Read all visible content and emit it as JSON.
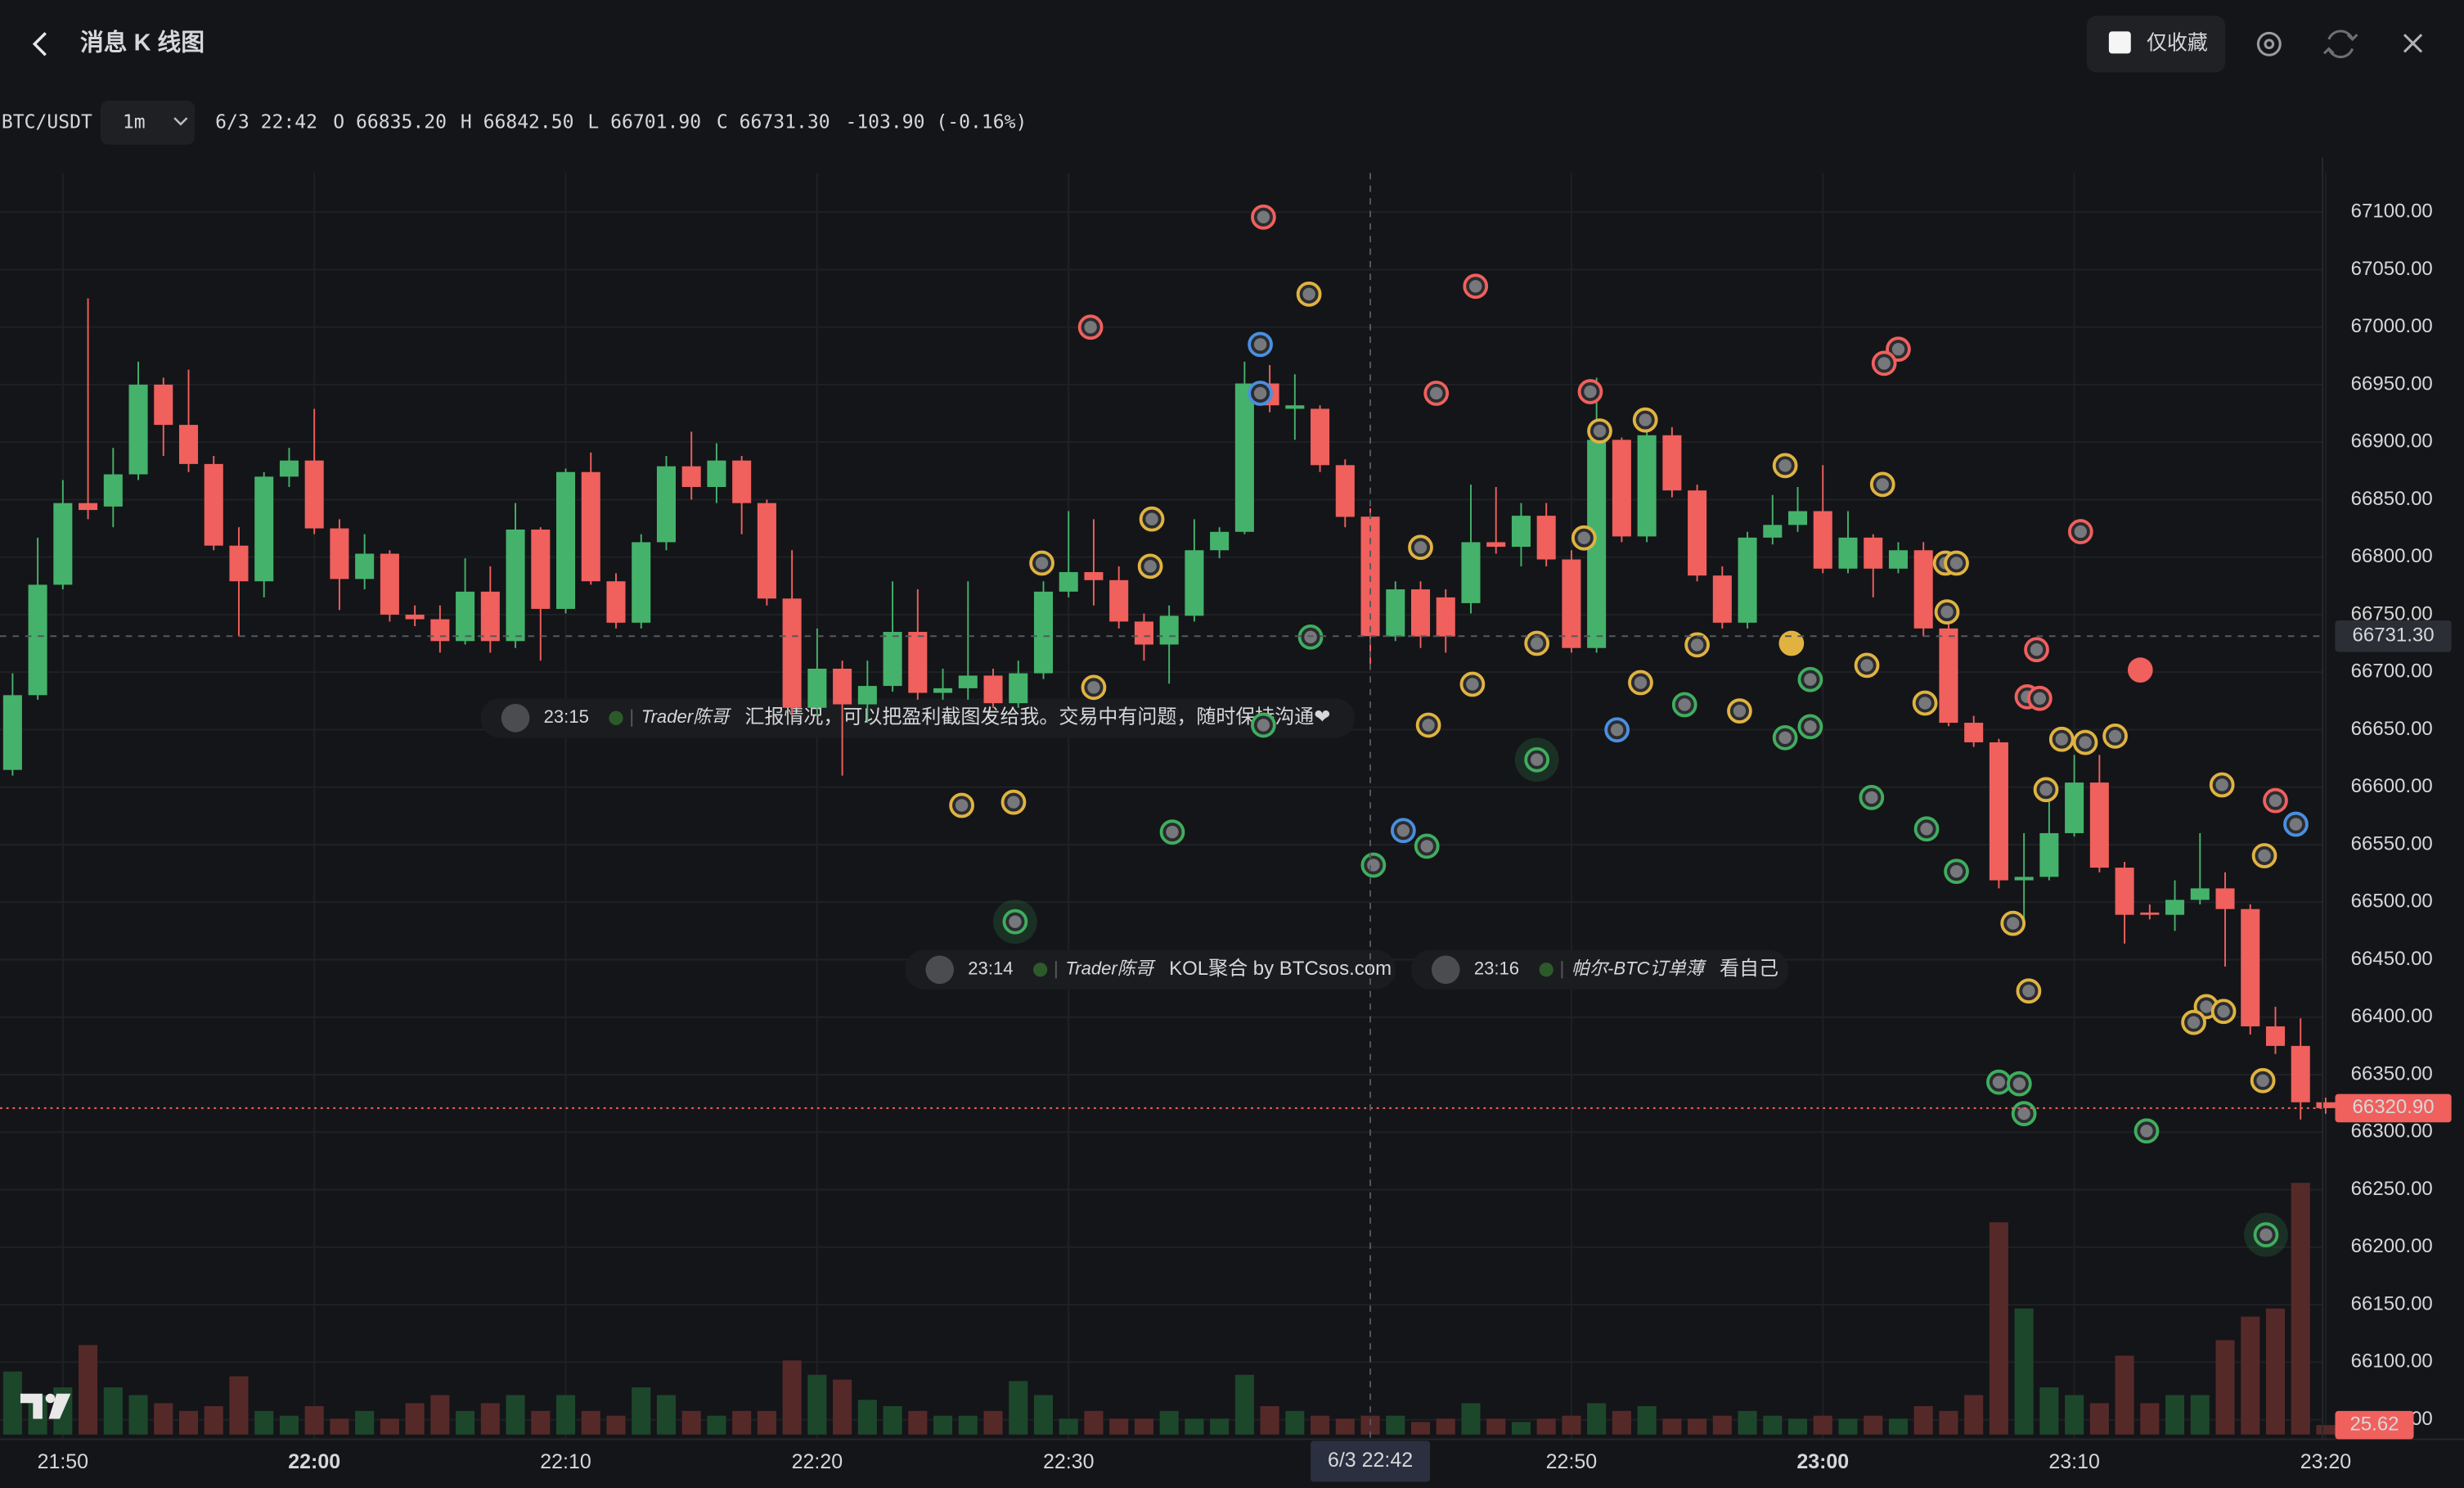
{
  "header": {
    "title": "消息 K 线图",
    "favorites_only": "仅收藏"
  },
  "info": {
    "symbol": "BTC/USDT",
    "interval": "1m",
    "time": "6/3 22:42",
    "open": "O 66835.20",
    "high": "H 66842.50",
    "low": "L 66701.90",
    "close": "C 66731.30",
    "change": "-103.90 (-0.16%)"
  },
  "messages": [
    {
      "time": "23:15",
      "user": "Trader陈哥",
      "text": "汇报情况，可以把盈利截图发给我。交易中有问题，随时保持沟通❤"
    },
    {
      "time": "23:14",
      "user": "Trader陈哥",
      "text": "KOL聚合 by BTCsos.com"
    },
    {
      "time": "23:16",
      "user": "帕尔-BTC订单薄",
      "text": "看自己"
    }
  ],
  "chart_data": {
    "type": "candlestick",
    "up_color": "#45b26b",
    "down_color": "#f0605d",
    "grid": true,
    "categories": [
      "21:48",
      "21:49",
      "21:50",
      "21:51",
      "21:52",
      "21:53",
      "21:54",
      "21:55",
      "21:56",
      "21:57",
      "21:58",
      "21:59",
      "22:00",
      "22:01",
      "22:02",
      "22:03",
      "22:04",
      "22:05",
      "22:06",
      "22:07",
      "22:08",
      "22:09",
      "22:10",
      "22:11",
      "22:12",
      "22:13",
      "22:14",
      "22:15",
      "22:16",
      "22:17",
      "22:18",
      "22:19",
      "22:20",
      "22:21",
      "22:22",
      "22:23",
      "22:24",
      "22:25",
      "22:26",
      "22:27",
      "22:28",
      "22:29",
      "22:30",
      "22:31",
      "22:32",
      "22:33",
      "22:34",
      "22:35",
      "22:36",
      "22:37",
      "22:38",
      "22:39",
      "22:40",
      "22:41",
      "22:42",
      "22:43",
      "22:44",
      "22:45",
      "22:46",
      "22:47",
      "22:48",
      "22:49",
      "22:50",
      "22:51",
      "22:52",
      "22:53",
      "22:54",
      "22:55",
      "22:56",
      "22:57",
      "22:58",
      "22:59",
      "23:00",
      "23:01",
      "23:02",
      "23:03",
      "23:04",
      "23:05",
      "23:06",
      "23:07",
      "23:08",
      "23:09",
      "23:10",
      "23:11",
      "23:12",
      "23:13",
      "23:14",
      "23:15",
      "23:16",
      "23:17",
      "23:18",
      "23:19",
      "23:20"
    ],
    "open": [
      66615,
      66680,
      66776,
      66847,
      66844,
      66872,
      66950,
      66915,
      66881,
      66810,
      66779,
      66870,
      66884,
      66825,
      66781,
      66803,
      66750,
      66746,
      66727,
      66770,
      66727,
      66824,
      66755,
      66874,
      66779,
      66743,
      66813,
      66879,
      66861,
      66884,
      66847,
      66764,
      66669,
      66703,
      66672,
      66688,
      66735,
      66682,
      66686,
      66697,
      66673,
      66699,
      66770,
      66787,
      66780,
      66744,
      66724,
      66749,
      66806,
      66822,
      66951,
      66929,
      66929,
      66880,
      66835.2,
      66731,
      66772,
      66765,
      66760,
      66813,
      66809,
      66836,
      66798,
      66721,
      66902,
      66818,
      66906,
      66858,
      66784,
      66743,
      66817,
      66828,
      66840,
      66790,
      66817,
      66790,
      66806,
      66738,
      66656,
      66639,
      66519,
      66522,
      66560,
      66604,
      66530,
      66491,
      66489,
      66502,
      66512,
      66494,
      66392,
      66375,
      66326
    ],
    "high": [
      66699,
      66817,
      66867,
      67025,
      66895,
      66970,
      66956,
      66963,
      66888,
      66826,
      66874,
      66895,
      66929,
      66833,
      66820,
      66806,
      66758,
      66758,
      66799,
      66792,
      66847,
      66826,
      66877,
      66891,
      66786,
      66820,
      66888,
      66909,
      66899,
      66888,
      66850,
      66806,
      66738,
      66710,
      66710,
      66779,
      66772,
      66703,
      66779,
      66703,
      66710,
      66779,
      66840,
      66833,
      66792,
      66751,
      66758,
      66833,
      66826,
      66970,
      66967,
      66959,
      66932,
      66885,
      66842.5,
      66779,
      66779,
      66772,
      66863,
      66861,
      66847,
      66847,
      66806,
      66956,
      66904,
      66915,
      66913,
      66863,
      66792,
      66822,
      66854,
      66861,
      66880,
      66840,
      66820,
      66813,
      66813,
      66744,
      66662,
      66642,
      66560,
      66594,
      66628,
      66628,
      66535,
      66498,
      66519,
      66560,
      66526,
      66498,
      66409,
      66399,
      66330
    ],
    "low": [
      66610,
      66676,
      66772,
      66833,
      66826,
      66867,
      66888,
      66874,
      66806,
      66731,
      66765,
      66861,
      66820,
      66754,
      66772,
      66744,
      66740,
      66717,
      66724,
      66717,
      66721,
      66710,
      66751,
      66776,
      66738,
      66738,
      66806,
      66850,
      66847,
      66820,
      66758,
      66662,
      66662,
      66610,
      66656,
      66683,
      66676,
      66676,
      66676,
      66669,
      66669,
      66694,
      66765,
      66758,
      66738,
      66710,
      66690,
      66744,
      66799,
      66820,
      66926,
      66902,
      66874,
      66826,
      66701.9,
      66727,
      66721,
      66717,
      66751,
      66803,
      66792,
      66792,
      66717,
      66717,
      66813,
      66813,
      66852,
      66779,
      66738,
      66738,
      66811,
      66822,
      66786,
      66786,
      66765,
      66786,
      66731,
      66653,
      66635,
      66512,
      66478,
      66519,
      66557,
      66526,
      66464,
      66485,
      66475,
      66498,
      66444,
      66385,
      66368,
      66311,
      66316
    ],
    "close": [
      66680,
      66776,
      66847,
      66841,
      66872,
      66950,
      66915,
      66881,
      66810,
      66779,
      66870,
      66884,
      66825,
      66781,
      66803,
      66750,
      66746,
      66727,
      66770,
      66727,
      66824,
      66755,
      66874,
      66779,
      66743,
      66813,
      66879,
      66861,
      66884,
      66847,
      66764,
      66669,
      66703,
      66672,
      66688,
      66735,
      66682,
      66686,
      66697,
      66673,
      66699,
      66770,
      66787,
      66780,
      66744,
      66724,
      66749,
      66806,
      66822,
      66951,
      66932,
      66932,
      66880,
      66835,
      66731.3,
      66772,
      66731,
      66731,
      66813,
      66809,
      66836,
      66798,
      66721,
      66902,
      66818,
      66906,
      66858,
      66784,
      66743,
      66817,
      66828,
      66840,
      66790,
      66817,
      66790,
      66806,
      66738,
      66656,
      66639,
      66519,
      66522,
      66560,
      66604,
      66530,
      66489,
      66489,
      66502,
      66512,
      66494,
      66392,
      66375,
      66326,
      66320.9
    ],
    "volume": [
      171,
      107,
      128,
      243,
      128,
      107,
      85,
      64,
      77,
      158,
      64,
      51,
      77,
      43,
      64,
      43,
      85,
      107,
      64,
      85,
      107,
      64,
      107,
      64,
      51,
      128,
      107,
      64,
      51,
      64,
      64,
      201,
      162,
      149,
      94,
      77,
      64,
      51,
      51,
      64,
      145,
      107,
      43,
      64,
      43,
      43,
      64,
      43,
      43,
      162,
      77,
      64,
      51,
      43,
      51,
      51,
      34,
      43,
      85,
      43,
      34,
      43,
      51,
      85,
      64,
      77,
      43,
      43,
      51,
      64,
      51,
      43,
      51,
      43,
      51,
      43,
      77,
      64,
      107,
      576,
      342,
      128,
      107,
      85,
      214,
      85,
      107,
      107,
      256,
      320,
      342,
      683,
      25.62
    ],
    "ylim": [
      66033,
      67134
    ],
    "yticks": [
      {
        "value": 66050,
        "label": "66050.00"
      },
      {
        "value": 66100,
        "label": "66100.00"
      },
      {
        "value": 66150,
        "label": "66150.00"
      },
      {
        "value": 66200,
        "label": "66200.00"
      },
      {
        "value": 66250,
        "label": "66250.00"
      },
      {
        "value": 66300,
        "label": "66300.00"
      },
      {
        "value": 66350,
        "label": "66350.00"
      },
      {
        "value": 66400,
        "label": "66400.00"
      },
      {
        "value": 66450,
        "label": "66450.00"
      },
      {
        "value": 66500,
        "label": "66500.00"
      },
      {
        "value": 66550,
        "label": "66550.00"
      },
      {
        "value": 66600,
        "label": "66600.00"
      },
      {
        "value": 66650,
        "label": "66650.00"
      },
      {
        "value": 66700,
        "label": "66700.00"
      },
      {
        "value": 66750,
        "label": "66750.00"
      },
      {
        "value": 66800,
        "label": "66800.00"
      },
      {
        "value": 66850,
        "label": "66850.00"
      },
      {
        "value": 66900,
        "label": "66900.00"
      },
      {
        "value": 66950,
        "label": "66950.00"
      },
      {
        "value": 67000,
        "label": "67000.00"
      },
      {
        "value": 67050,
        "label": "67050.00"
      },
      {
        "value": 67100,
        "label": "67100.00"
      }
    ],
    "xticks": [
      "21:50",
      "22:00",
      "22:10",
      "22:20",
      "22:30",
      "22:50",
      "23:00",
      "23:10",
      "23:20"
    ],
    "last_price": {
      "value": 66320.9,
      "label": "66320.90"
    },
    "crosshair": {
      "time": "6/3 22:42",
      "price": {
        "value": 66731.3,
        "label": "66731.30"
      }
    }
  }
}
